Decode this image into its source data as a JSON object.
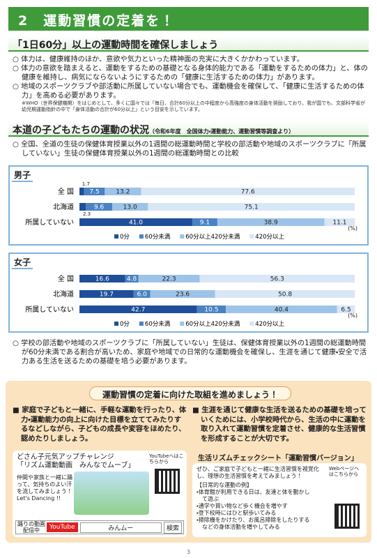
{
  "header": {
    "title": "2　運動習慣の定着を！"
  },
  "section1": {
    "title": "「1日60分」以上の運動時間を確保しましょう",
    "bullets": [
      "体力は、健康維持のほか、意欲や気力といった精神面の充実に大きくかかわっています。",
      "体力の意欲を踏まえると、運動をするための基礎となる身体的能力である「運動をするための体力」と、体の健康を維持し、病気にならないようにするための「健康に生活するための体力」があります。",
      "地域のスポーツクラブや部活動に所属していない場合でも、運動機会を確保して、「健康に生活するための体力」を高める必要があります。"
    ],
    "note": "※WHO（世界保健機関）をはじめとして、多くに国々では「毎日、合計60分以上の中程度から高強度の身体活動を奨励しており、我が国でも、文部科学省が幼児期運動指針の中で「身体活動の合計が60分以上」という目安を示しています。"
  },
  "section2": {
    "title": "本道の子どもたちの運動の状況",
    "source": "（令和6年度　全国体力・運動能力、運動習慣等調査より）",
    "bullet": "全国、全道の生徒の保健体育授業以外の1週間の総運動時間と学校の部活動や地域のスポーツクラブに「所属していない」生徒の保健体育授業以外の1週間の総運動時間との比較",
    "conclusion": "学校の部活動や地域のスポーツクラブに「所属していない」生徒は、保健体育授業以外の1週間の総運動時間が60分未満である割合が高いため、家庭や地域での日常的な運動機会を確保し、生涯を通じて健康・安全で活力ある生活を送るための基礎を培う必要があります。"
  },
  "chart_data": [
    {
      "type": "stacked_bar_horizontal",
      "title": "男子",
      "unit": "(%)",
      "categories": [
        "全 国",
        "北海道",
        "所属していない"
      ],
      "xlim": [
        0,
        100
      ],
      "series": [
        {
          "name": "0分",
          "color": "#1f4f9a",
          "values": [
            1.7,
            2.3,
            41.0
          ],
          "value_labels": [
            "1.7",
            "2.3",
            "41.0"
          ]
        },
        {
          "name": "60分未満",
          "color": "#4a82c3",
          "values": [
            7.5,
            9.6,
            9.1
          ],
          "value_labels": [
            "7.5",
            "9.6",
            "9.1"
          ]
        },
        {
          "name": "60分以上420分未満",
          "color": "#9ec3e8",
          "values": [
            13.2,
            13.0,
            38.9
          ],
          "value_labels": [
            "13.2",
            "13.0",
            "38.9"
          ]
        },
        {
          "name": "420分以上",
          "color": "#d8e7f6",
          "values": [
            77.6,
            75.1,
            11.1
          ],
          "value_labels": [
            "77.6",
            "75.1",
            "11.1"
          ]
        }
      ]
    },
    {
      "type": "stacked_bar_horizontal",
      "title": "女子",
      "unit": "(%)",
      "categories": [
        "全 国",
        "北海道",
        "所属していない"
      ],
      "xlim": [
        0,
        100
      ],
      "series": [
        {
          "name": "0分",
          "color": "#1f4f9a",
          "values": [
            16.6,
            19.7,
            42.7
          ],
          "value_labels": [
            "16.6",
            "19.7",
            "42.7"
          ]
        },
        {
          "name": "60分未満",
          "color": "#4a82c3",
          "values": [
            4.8,
            6.0,
            10.5
          ],
          "value_labels": [
            "4.8",
            "6.0",
            "10.5"
          ]
        },
        {
          "name": "60分以上420分未満",
          "color": "#9ec3e8",
          "values": [
            22.3,
            23.6,
            40.4
          ],
          "value_labels": [
            "22.3",
            "23.6",
            "40.4"
          ]
        },
        {
          "name": "420分以上",
          "color": "#d8e7f6",
          "values": [
            56.3,
            50.8,
            6.5
          ],
          "value_labels": [
            "56.3",
            "50.8",
            "6.5"
          ]
        }
      ]
    }
  ],
  "action": {
    "title": "運動習慣の定着に向けた取組を進めましょう！",
    "left": {
      "text": "家庭で子どもと一緒に、手軽な運動を行ったり、体力・運動能力の向上に向けた目標を立ててみたりするなどしながら、子どもの成長や変容をほめたり、認めたりしましょう。",
      "heading1": "どさん子元気アップチャレンジ",
      "heading2": "「リズム運動動画　みんなでムーブ」",
      "qr_note": "YouTubeへはこちらから",
      "invite": "仲間や家族と一緒に踊って、気持ちのよい汗を流してみましょう！",
      "slogan": "Let's Dancing !!",
      "stream": "踊りの動画配信中",
      "youtube": "YouTube",
      "keyword": "みんムー",
      "search": "検索"
    },
    "right": {
      "text": "生涯を通じて健康な生活を送るための基礎を培っていくためには、小学校時代から、生活の中に運動を取り入れて運動習慣を定着させ、健康的な生活習慣を形成することが大切です。",
      "heading": "生活リズムチェックシート「運動習慣バージョン」",
      "intro": "ぜひ、ご家庭で子どもと一緒に生活習慣を視覚化し、理想の生活習慣を考えてみましょう！",
      "examples_title": "【日常的な運動の例】",
      "examples": [
        "体育館が利用できる日は、友達と体を動かして遊ぶ",
        "通学や買い物など歩く機会を増やす",
        "登下校時にはひと駅歩いてみる",
        "掃除機をかけたり、お風呂掃除をしたりするなどの身体活動を増やしてみる"
      ],
      "qr_note": "Webページへはこちらから"
    }
  },
  "page_number": "3"
}
